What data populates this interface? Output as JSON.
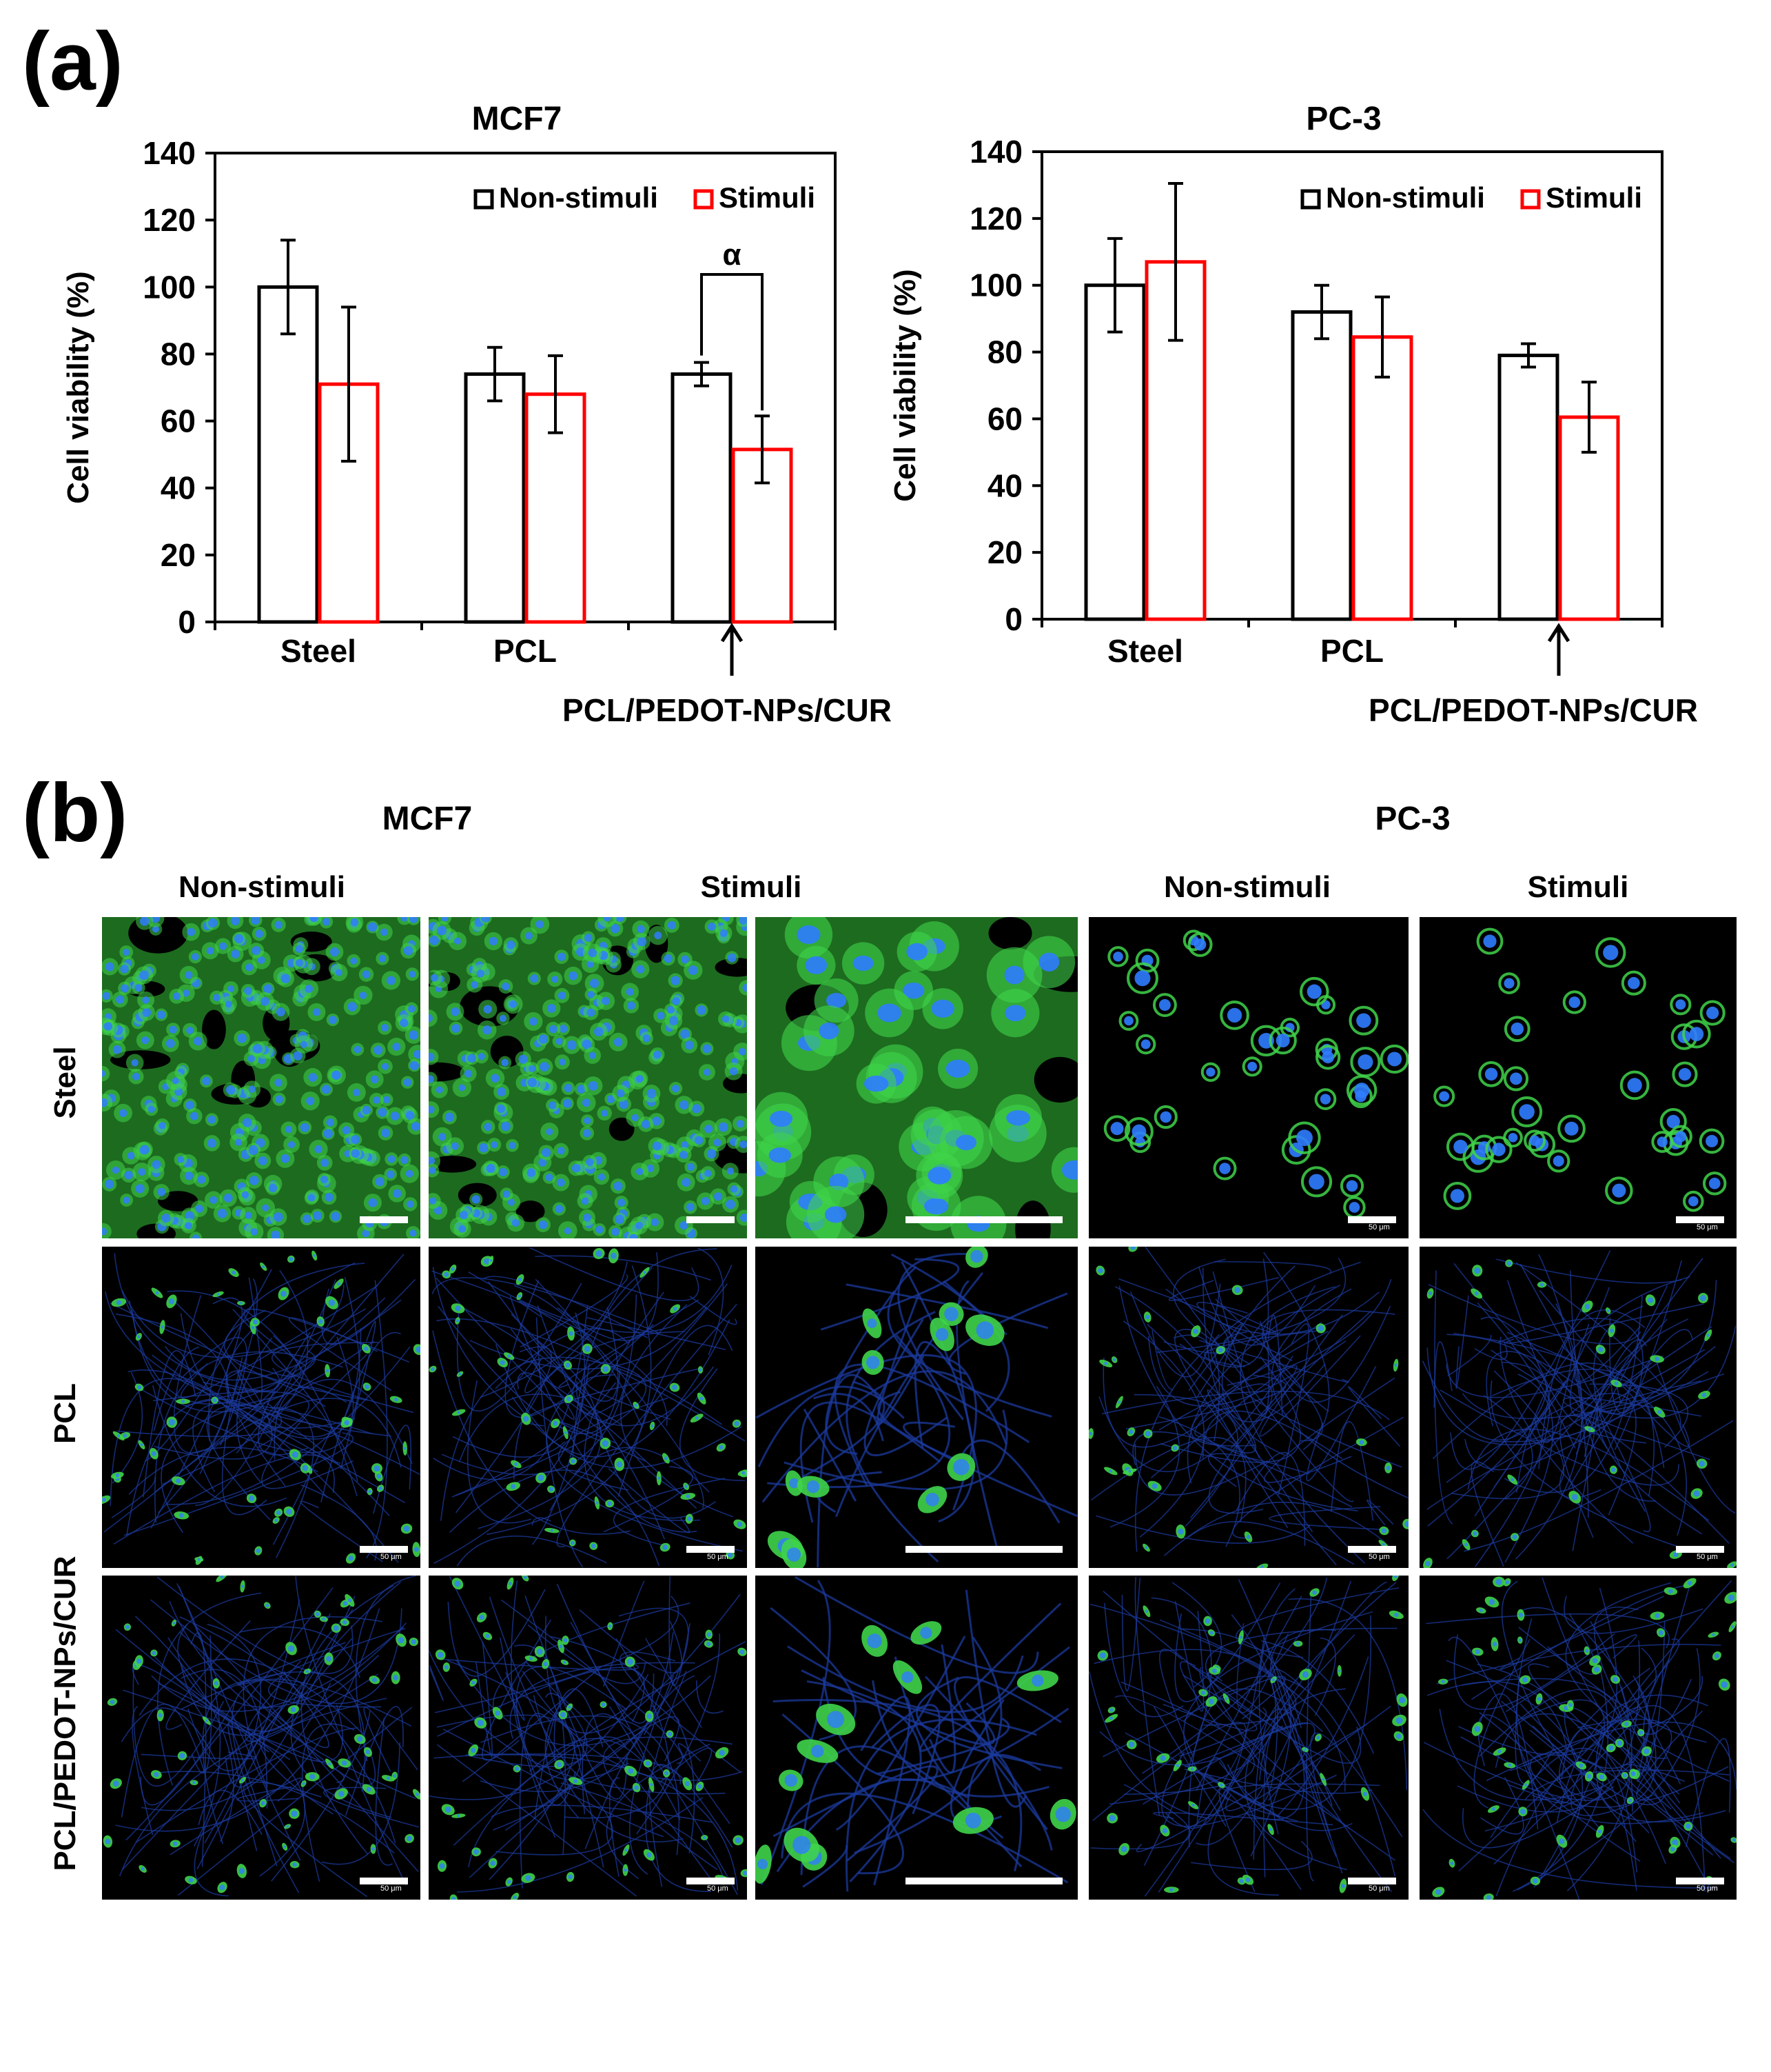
{
  "panel_a_label": "(a)",
  "panel_b_label": "(b)",
  "chart_data": [
    {
      "type": "bar",
      "title": "MCF7",
      "xlabel": "",
      "ylabel": "Cell viability (%)",
      "ylim": [
        0,
        140
      ],
      "yticks": [
        "0",
        "20",
        "40",
        "60",
        "80",
        "100",
        "120",
        "140"
      ],
      "categories": [
        "Steel",
        "PCL",
        "PCL/PEDOT-NPs/CUR"
      ],
      "legend_position": "top-right",
      "series": [
        {
          "name": "Non-stimuli",
          "color": "#000000",
          "values": [
            100,
            74,
            74
          ],
          "errors": [
            14,
            8,
            3.5
          ]
        },
        {
          "name": "Stimuli",
          "color": "#ff0000",
          "values": [
            71,
            68,
            51.5
          ],
          "errors": [
            23,
            11.5,
            10
          ]
        }
      ],
      "annotations": [
        {
          "text": "α",
          "category": "PCL/PEDOT-NPs/CUR",
          "type": "significance-bracket"
        }
      ]
    },
    {
      "type": "bar",
      "title": "PC-3",
      "xlabel": "",
      "ylabel": "Cell viability (%)",
      "ylim": [
        0,
        140
      ],
      "yticks": [
        "0",
        "20",
        "40",
        "60",
        "80",
        "100",
        "120",
        "140"
      ],
      "categories": [
        "Steel",
        "PCL",
        "PCL/PEDOT-NPs/CUR"
      ],
      "legend_position": "top-right",
      "series": [
        {
          "name": "Non-stimuli",
          "color": "#000000",
          "values": [
            100,
            92,
            79
          ],
          "errors": [
            14,
            8,
            3.5
          ]
        },
        {
          "name": "Stimuli",
          "color": "#ff0000",
          "values": [
            107,
            84.5,
            60.5
          ],
          "errors": [
            23.5,
            12,
            10.5
          ]
        }
      ],
      "annotations": []
    }
  ],
  "micrographs": {
    "cell_line_titles": [
      "MCF7",
      "PC-3"
    ],
    "column_headers": [
      "Non-stimuli",
      "Stimuli",
      "Non-stimuli",
      "Stimuli"
    ],
    "row_labels": [
      "Steel",
      "PCL",
      "PCL/PEDOT-NPs/CUR"
    ],
    "scale_bar_text": "50 μm",
    "colors": {
      "actin": "#3fd44a",
      "nuclei": "#2f7cff",
      "fibers": "#1b3a9c",
      "background": "#000000"
    }
  }
}
